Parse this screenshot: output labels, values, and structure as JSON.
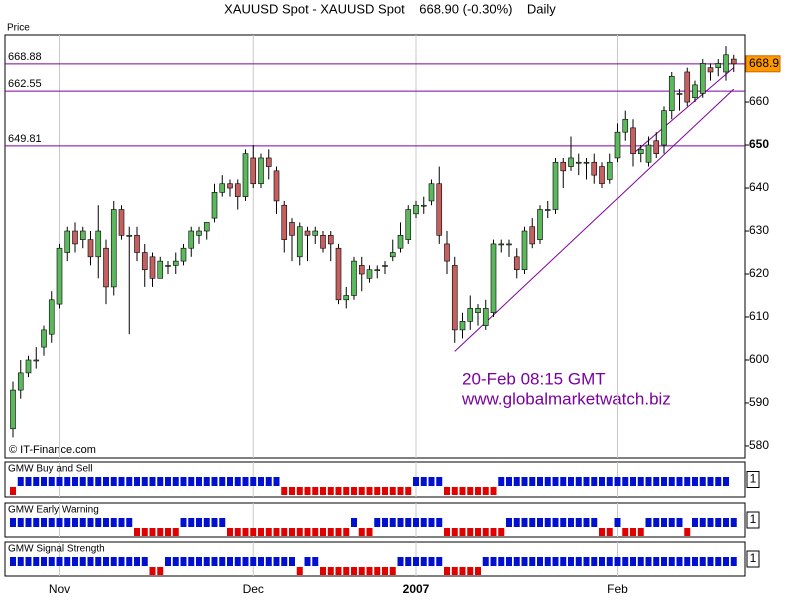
{
  "chart_data": {
    "type": "candlestick",
    "title": "XAUUSD Spot - XAUUSD Spot    668.90 (-0.30%)    Daily",
    "y_axis_label": "Price",
    "source": "© IT-Finance.com",
    "annotations": [
      "20-Feb 08:15 GMT",
      "www.globalmarketwatch.biz"
    ],
    "categories": [
      null,
      null,
      null,
      null,
      null,
      null,
      "Nov",
      null,
      null,
      null,
      null,
      null,
      null,
      null,
      null,
      null,
      null,
      null,
      null,
      null,
      null,
      null,
      null,
      null,
      null,
      null,
      null,
      null,
      null,
      null,
      null,
      "Dec",
      null,
      null,
      null,
      null,
      null,
      null,
      null,
      null,
      null,
      null,
      null,
      null,
      null,
      null,
      null,
      null,
      null,
      null,
      null,
      null,
      "2007",
      null,
      null,
      null,
      null,
      null,
      null,
      null,
      null,
      null,
      null,
      null,
      null,
      null,
      null,
      null,
      null,
      null,
      null,
      null,
      null,
      null,
      null,
      null,
      null,
      null,
      "Feb",
      null,
      null,
      null,
      null,
      null,
      null,
      null,
      null,
      null,
      null,
      null,
      null,
      null,
      null,
      null
    ],
    "open": [
      584,
      593,
      597,
      600,
      603,
      606,
      613,
      625,
      630,
      628,
      628,
      624,
      626,
      617,
      635,
      629,
      629,
      625,
      624,
      619,
      622,
      622,
      623,
      626,
      629,
      630,
      633,
      639,
      641,
      641,
      638,
      647,
      641,
      647,
      644,
      636,
      632,
      624,
      630,
      629,
      629,
      629,
      626,
      614,
      615,
      622,
      619,
      621,
      622,
      624,
      626,
      628,
      634,
      636,
      637,
      641,
      627,
      622,
      607,
      609,
      611,
      608,
      611,
      627,
      627,
      624,
      621,
      631,
      628,
      635,
      635,
      646,
      645,
      646,
      646,
      646,
      645,
      642,
      647,
      653,
      654,
      648,
      646,
      651,
      650,
      658,
      662,
      667,
      661,
      662,
      668,
      668,
      667,
      670
    ],
    "high": [
      595,
      600,
      601,
      603,
      608,
      616,
      627,
      631,
      632,
      631,
      630,
      636,
      628,
      637,
      636,
      631,
      631,
      627,
      625,
      624,
      623,
      625,
      627,
      631,
      631,
      632,
      641,
      643,
      642,
      642,
      649,
      650,
      648,
      649,
      645,
      637,
      633,
      632,
      631,
      631,
      630,
      630,
      627,
      617,
      624,
      624,
      622,
      622,
      623,
      628,
      632,
      636,
      637,
      638,
      642,
      645,
      630,
      624,
      611,
      615,
      613,
      614,
      628,
      628,
      628,
      626,
      631,
      633,
      636,
      637,
      647,
      647,
      652,
      648,
      647,
      648,
      646,
      648,
      655,
      658,
      656,
      650,
      652,
      653,
      659,
      667,
      663,
      668,
      665,
      670,
      669,
      670,
      673,
      671
    ],
    "low": [
      582,
      591,
      596,
      598,
      601,
      604,
      612,
      623,
      625,
      626,
      622,
      619,
      613,
      615,
      628,
      606,
      623,
      617,
      617,
      619,
      620,
      620,
      622,
      624,
      627,
      628,
      632,
      638,
      638,
      635,
      637,
      640,
      640,
      642,
      634,
      625,
      623,
      622,
      623,
      627,
      625,
      623,
      613,
      612,
      614,
      616,
      618,
      619,
      620,
      623,
      625,
      627,
      633,
      634,
      636,
      627,
      620,
      604,
      605,
      607,
      608,
      607,
      610,
      625,
      624,
      619,
      620,
      626,
      627,
      633,
      634,
      640,
      644,
      643,
      642,
      641,
      640,
      641,
      646,
      651,
      645,
      646,
      645,
      647,
      648,
      656,
      658,
      659,
      660,
      661,
      665,
      666,
      665,
      667
    ],
    "close": [
      593,
      597,
      600,
      600,
      607,
      614,
      626,
      630,
      627,
      630,
      624,
      630,
      617,
      635,
      629,
      629,
      625,
      621,
      619,
      623,
      622,
      623,
      626,
      630,
      630,
      632,
      639,
      641,
      640,
      638,
      648,
      641,
      647,
      645,
      637,
      628,
      629,
      631,
      629,
      630,
      626,
      627,
      614,
      615,
      623,
      620,
      621,
      621,
      622,
      625,
      629,
      635,
      636,
      636,
      641,
      629,
      623,
      607,
      609,
      612,
      612,
      612,
      627,
      627,
      627,
      621,
      630,
      627,
      635,
      635,
      646,
      644,
      647,
      646,
      646,
      643,
      641,
      646,
      653,
      656,
      648,
      649,
      650,
      648,
      658,
      666,
      662,
      660,
      664,
      669,
      667,
      669,
      671,
      668.9
    ],
    "up_color": "#5cb85c",
    "down_color": "#c46060",
    "ylim": [
      577.2,
      675.6
    ],
    "yticks": [
      580,
      590,
      600,
      610,
      620,
      630,
      640,
      650,
      660
    ],
    "levels": [
      668.88,
      662.55,
      649.81
    ],
    "level_color": "#8000a0",
    "trend_lines": [
      {
        "x": [
          57,
          93
        ],
        "y": [
          602,
          663
        ]
      },
      {
        "x": [
          80,
          93
        ],
        "y": [
          648,
          668
        ]
      }
    ],
    "last_price": 668.9,
    "indicators": [
      {
        "name": "GMW Buy and Sell",
        "scale": 1,
        "values": [
          -1,
          1,
          1,
          1,
          1,
          1,
          1,
          1,
          1,
          1,
          1,
          1,
          1,
          1,
          1,
          1,
          1,
          1,
          1,
          1,
          1,
          1,
          1,
          1,
          1,
          1,
          1,
          1,
          1,
          1,
          1,
          1,
          1,
          1,
          1,
          -1,
          -1,
          -1,
          -1,
          -1,
          -1,
          -1,
          -1,
          -1,
          -1,
          -1,
          -1,
          -1,
          -1,
          -1,
          -1,
          -1,
          1,
          1,
          1,
          1,
          -1,
          -1,
          -1,
          -1,
          -1,
          -1,
          -1,
          1,
          1,
          1,
          1,
          1,
          1,
          1,
          1,
          1,
          1,
          1,
          1,
          1,
          1,
          1,
          1,
          1,
          1,
          1,
          1,
          1,
          1,
          1,
          1,
          1,
          1,
          1,
          1,
          1,
          1
        ]
      },
      {
        "name": "GMW Early Warning",
        "scale": 1,
        "values": [
          1,
          1,
          1,
          1,
          1,
          1,
          1,
          1,
          1,
          1,
          1,
          1,
          1,
          1,
          1,
          1,
          -1,
          -1,
          -1,
          -1,
          -1,
          -1,
          1,
          1,
          1,
          1,
          1,
          1,
          -1,
          -1,
          -1,
          -1,
          -1,
          -1,
          -1,
          -1,
          -1,
          -1,
          -1,
          -1,
          -1,
          -1,
          -1,
          -1,
          1,
          -1,
          -1,
          1,
          1,
          1,
          1,
          1,
          1,
          1,
          1,
          1,
          -1,
          -1,
          -1,
          -1,
          -1,
          -1,
          -1,
          -1,
          1,
          1,
          1,
          1,
          1,
          1,
          1,
          1,
          1,
          1,
          1,
          1,
          -1,
          -1,
          1,
          -1,
          -1,
          -1,
          1,
          1,
          1,
          1,
          1,
          -1,
          1,
          1,
          1,
          1,
          1,
          1
        ]
      },
      {
        "name": "GMW Signal Strength",
        "scale": 1,
        "values": [
          1,
          1,
          1,
          1,
          1,
          1,
          1,
          1,
          1,
          1,
          1,
          1,
          1,
          1,
          1,
          1,
          1,
          1,
          -1,
          -1,
          1,
          1,
          1,
          1,
          1,
          1,
          1,
          1,
          1,
          1,
          1,
          1,
          1,
          1,
          1,
          1,
          1,
          -1,
          1,
          1,
          -1,
          -1,
          -1,
          -1,
          -1,
          -1,
          -1,
          -1,
          -1,
          -1,
          1,
          1,
          1,
          1,
          1,
          1,
          -1,
          -1,
          -1,
          -1,
          -1,
          1,
          1,
          1,
          1,
          1,
          1,
          1,
          1,
          1,
          1,
          1,
          1,
          1,
          1,
          1,
          1,
          1,
          1,
          1,
          1,
          1,
          1,
          1,
          1,
          1,
          1,
          1,
          1,
          1,
          1,
          1,
          1,
          1
        ]
      }
    ],
    "indicator_colors": {
      "up": "#0010d0",
      "down": "#e00000"
    }
  }
}
